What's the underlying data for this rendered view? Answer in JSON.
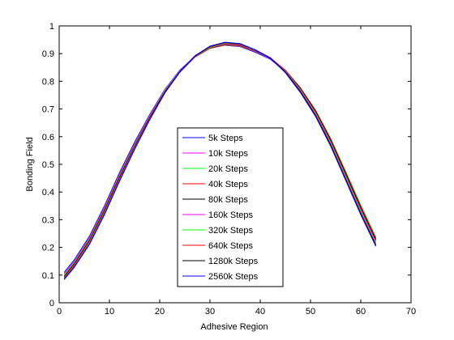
{
  "figure": {
    "background": "#ffffff"
  },
  "chart_data": {
    "type": "line",
    "title": "",
    "xlabel": "Adhesive Region",
    "ylabel": "Bonding Field",
    "xlim": [
      0,
      70
    ],
    "ylim": [
      0,
      1
    ],
    "xticks": [
      0,
      10,
      20,
      30,
      40,
      50,
      60,
      70
    ],
    "yticks": [
      0,
      0.1,
      0.2,
      0.3,
      0.4,
      0.5,
      0.6,
      0.7,
      0.8,
      0.9,
      1
    ],
    "xtick_labels": [
      "0",
      "10",
      "20",
      "30",
      "40",
      "50",
      "60",
      "70"
    ],
    "ytick_labels": [
      "0",
      "0.1",
      "0.2",
      "0.3",
      "0.4",
      "0.5",
      "0.6",
      "0.7",
      "0.8",
      "0.9",
      "1"
    ],
    "grid": false,
    "legend": "center",
    "x": [
      1,
      3,
      6,
      9,
      12,
      15,
      18,
      21,
      24,
      27,
      30,
      33,
      36,
      39,
      42,
      45,
      48,
      51,
      54,
      57,
      60,
      63
    ],
    "series": [
      {
        "name": "5k Steps",
        "color": "#0000ff",
        "values": [
          0.11,
          0.155,
          0.24,
          0.35,
          0.47,
          0.58,
          0.68,
          0.77,
          0.84,
          0.89,
          0.92,
          0.93,
          0.925,
          0.905,
          0.88,
          0.835,
          0.77,
          0.69,
          0.59,
          0.47,
          0.35,
          0.235
        ]
      },
      {
        "name": "10k Steps",
        "color": "#ff00ff",
        "values": [
          0.105,
          0.15,
          0.235,
          0.345,
          0.465,
          0.575,
          0.677,
          0.768,
          0.838,
          0.889,
          0.919,
          0.93,
          0.926,
          0.907,
          0.882,
          0.838,
          0.774,
          0.694,
          0.593,
          0.473,
          0.352,
          0.237
        ]
      },
      {
        "name": "20k Steps",
        "color": "#00ff00",
        "values": [
          0.1,
          0.146,
          0.231,
          0.34,
          0.46,
          0.571,
          0.673,
          0.765,
          0.836,
          0.888,
          0.919,
          0.931,
          0.927,
          0.909,
          0.884,
          0.84,
          0.776,
          0.696,
          0.594,
          0.474,
          0.352,
          0.236
        ]
      },
      {
        "name": "40k Steps",
        "color": "#ff0000",
        "values": [
          0.096,
          0.142,
          0.227,
          0.336,
          0.456,
          0.567,
          0.67,
          0.762,
          0.834,
          0.887,
          0.919,
          0.932,
          0.928,
          0.91,
          0.885,
          0.84,
          0.776,
          0.695,
          0.592,
          0.471,
          0.348,
          0.232
        ]
      },
      {
        "name": "80k Steps",
        "color": "#000000",
        "values": [
          0.093,
          0.139,
          0.223,
          0.332,
          0.452,
          0.563,
          0.667,
          0.76,
          0.833,
          0.887,
          0.92,
          0.934,
          0.93,
          0.911,
          0.885,
          0.839,
          0.774,
          0.692,
          0.588,
          0.466,
          0.343,
          0.227
        ]
      },
      {
        "name": "160k Steps",
        "color": "#ff00ff",
        "values": [
          0.09,
          0.136,
          0.22,
          0.328,
          0.448,
          0.56,
          0.664,
          0.758,
          0.832,
          0.887,
          0.921,
          0.935,
          0.931,
          0.912,
          0.885,
          0.838,
          0.771,
          0.688,
          0.583,
          0.46,
          0.337,
          0.222
        ]
      },
      {
        "name": "320k Steps",
        "color": "#00ff00",
        "values": [
          0.088,
          0.133,
          0.216,
          0.324,
          0.444,
          0.557,
          0.662,
          0.757,
          0.832,
          0.888,
          0.922,
          0.937,
          0.933,
          0.913,
          0.885,
          0.836,
          0.768,
          0.684,
          0.578,
          0.455,
          0.331,
          0.216
        ]
      },
      {
        "name": "640k Steps",
        "color": "#ff0000",
        "values": [
          0.086,
          0.131,
          0.213,
          0.321,
          0.441,
          0.555,
          0.661,
          0.757,
          0.833,
          0.889,
          0.924,
          0.939,
          0.934,
          0.914,
          0.885,
          0.835,
          0.765,
          0.68,
          0.573,
          0.449,
          0.325,
          0.211
        ]
      },
      {
        "name": "1280k Steps",
        "color": "#000000",
        "values": [
          0.085,
          0.129,
          0.211,
          0.319,
          0.44,
          0.554,
          0.661,
          0.758,
          0.834,
          0.891,
          0.926,
          0.94,
          0.935,
          0.914,
          0.884,
          0.833,
          0.762,
          0.676,
          0.569,
          0.445,
          0.321,
          0.207
        ]
      },
      {
        "name": "2560k Steps",
        "color": "#0000ff",
        "values": [
          0.084,
          0.128,
          0.21,
          0.318,
          0.439,
          0.554,
          0.661,
          0.758,
          0.835,
          0.892,
          0.927,
          0.941,
          0.936,
          0.914,
          0.883,
          0.831,
          0.759,
          0.673,
          0.566,
          0.442,
          0.318,
          0.204
        ]
      }
    ]
  }
}
